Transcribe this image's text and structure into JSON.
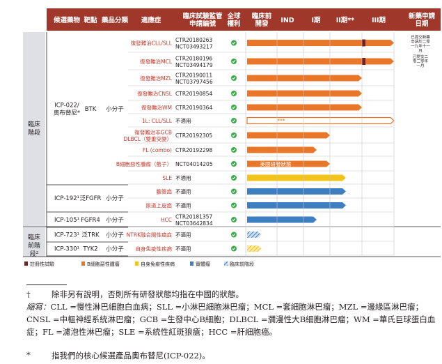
{
  "colors": {
    "header_bg": "#a0372b",
    "stage_band": "#dfe0e6",
    "indication_text": "#c0392b",
    "b_cell": "#e8772a",
    "autoimmune": "#f2c318",
    "solid_tumor": "#3e7fc1",
    "preclinical": "#3e7fc1",
    "check": "#3bab4a",
    "note_mark": "#7a1f1f"
  },
  "header": {
    "candidate": "候選藥物",
    "target": "靶點",
    "category": "藥品分類",
    "indication": "適應症",
    "trial_no": "臨床試驗監管申請編號",
    "global_rights": "全球權利",
    "preclinical": "臨床前開發",
    "ind": "IND",
    "phase1": "I期",
    "phase2": "II期**",
    "phase3": "III期",
    "nda": "新藥申請日期"
  },
  "sections": {
    "clinical": "臨床階段",
    "preclinical": "臨床前階段²"
  },
  "drugs": {
    "d1": {
      "name": "ICP-022/奧布替尼*",
      "target": "BTK",
      "category": "小分子"
    },
    "d2": {
      "name": "ICP-192¹",
      "target": "泛FGFR",
      "category": "小分子"
    },
    "d3": {
      "name": "ICP-105¹",
      "target": "FGFR4",
      "category": "小分子"
    },
    "d4": {
      "name": "ICP-723¹",
      "target": "泛TRK",
      "category": "小分子"
    },
    "d5": {
      "name": "ICP-330¹",
      "target": "TYK2",
      "category": "小分子"
    }
  },
  "chart_data": {
    "type": "table",
    "stages": [
      "臨床前開發",
      "IND",
      "I期",
      "II期**",
      "III期"
    ],
    "rows": [
      {
        "drug": "ICP-022/奧布替尼*",
        "indication": "復發難治CLL/SLL",
        "trial": "CTR20180263 NCT03493217",
        "rights": true,
        "category": "B細胞惡性腫瘤",
        "progress": 5.0,
        "note": true,
        "nda": "已提交新藥申請於二零一九年十一月"
      },
      {
        "drug": "ICP-022/奧布替尼*",
        "indication": "復發難治MCL",
        "trial": "CTR20180196 NCT03494179",
        "rights": true,
        "category": "B細胞惡性腫瘤",
        "progress": 5.0,
        "note": true,
        "nda": "已提交二零二零年一月"
      },
      {
        "drug": "ICP-022/奧布替尼*",
        "indication": "復發難治MZL",
        "trial": "CTR20190011 NCT03797456",
        "rights": true,
        "category": "B細胞惡性腫瘤",
        "progress": 4.0
      },
      {
        "drug": "ICP-022/奧布替尼*",
        "indication": "復發難治CNSL",
        "trial": "CTR20190854",
        "rights": true,
        "category": "B細胞惡性腫瘤",
        "progress": 4.0
      },
      {
        "drug": "ICP-022/奧布替尼*",
        "indication": "復發難治WM",
        "trial": "CTR20190364",
        "rights": true,
        "category": "B細胞惡性腫瘤",
        "progress": 4.0
      },
      {
        "drug": "ICP-022/奧布替尼*",
        "indication": "1L: CLL/SLL",
        "trial": "不適用",
        "rights": true,
        "category": "B細胞惡性腫瘤",
        "progress": 5.0,
        "dashed": true,
        "bar_text": "***"
      },
      {
        "drug": "ICP-022/奧布替尼*",
        "indication": "復發難治非GCB DLBCL（雙重突變）",
        "trial": "CTR20192305",
        "rights": true,
        "category": "B細胞惡性腫瘤",
        "progress": 3.0
      },
      {
        "drug": "ICP-022/奧布替尼*",
        "indication": "FL (combo)",
        "trial": "CTR20192298",
        "rights": true,
        "category": "B細胞惡性腫瘤",
        "progress": 2.5
      },
      {
        "drug": "ICP-022/奧布替尼*",
        "indication": "B細胞惡性腫瘤（藍子）",
        "trial": "NCT04014205",
        "rights": true,
        "category": "B細胞惡性腫瘤",
        "progress": 3.0,
        "bar_text": "美國研發狀態"
      },
      {
        "drug": "ICP-022/奧布替尼*",
        "indication": "SLE",
        "trial": "不適用",
        "rights": true,
        "category": "自身免疫性疾病",
        "progress": 3.5
      },
      {
        "drug": "ICP-192¹",
        "indication": "膽管癌",
        "trial": "不適用",
        "rights": true,
        "category": "實體瘤",
        "progress": 3.5
      },
      {
        "drug": "ICP-192¹",
        "indication": "尿道上皮癌",
        "trial": "不適用",
        "rights": true,
        "category": "實體瘤",
        "progress": 3.5
      },
      {
        "drug": "ICP-105¹",
        "indication": "HCC",
        "trial": "CTR20181357 NCT03642834",
        "rights": true,
        "category": "實體瘤",
        "progress": 2.5
      },
      {
        "drug": "ICP-723¹",
        "indication": "NTRK融合陽性癌症",
        "trial": "不適用",
        "rights": true,
        "category": "臨床前階段",
        "progress": 0.5,
        "hatched": true
      },
      {
        "drug": "ICP-330¹",
        "indication": "自身免疫性疾病",
        "trial": "不適用",
        "rights": true,
        "category": "自身免疫性疾病",
        "progress": 0.5,
        "hatched": true
      }
    ],
    "legend": [
      "註冊性試驗",
      "B細胞惡性腫瘤",
      "自身免疫性疾病",
      "實體瘤",
      "臨床前階段"
    ]
  },
  "notes": {
    "dagger_mark": "†",
    "dagger_text": "除非另有說明，否則所有研發狀態均指在中國的狀態。",
    "abbr_label": "縮寫：",
    "abbr_text": "CLL =慢性淋巴細胞白血病；SLL =小淋巴細胞淋巴瘤；MCL =套細胞淋巴瘤；MZL =邊緣區淋巴瘤；CNSL =中樞神經系統淋巴瘤；GCB =生發中心B細胞；DLBCL =瀰漫性大B細胞淋巴瘤；WM =華氏巨球蛋白血症；FL =濾泡性淋巴瘤；SLE =系統性紅斑狼瘡；HCC =肝細胞癌。",
    "star_mark": "*",
    "star_text": "指我們的核心候選產品奧布替尼(ICP-022)。"
  }
}
